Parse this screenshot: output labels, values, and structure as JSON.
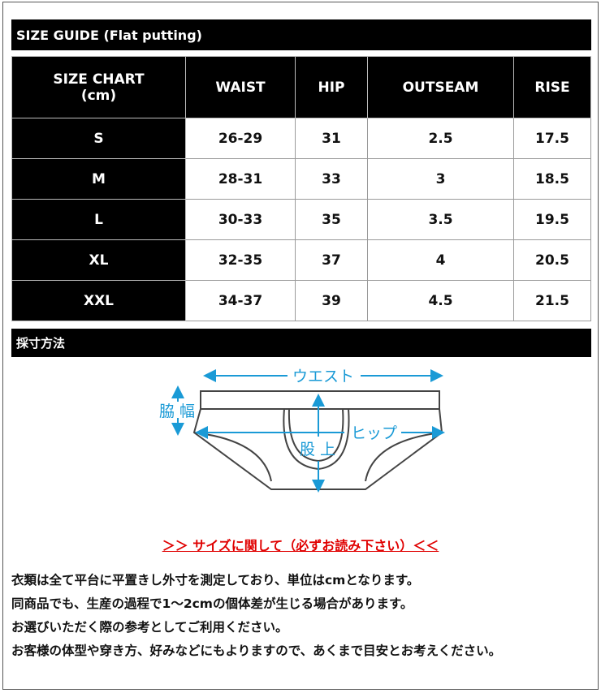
{
  "title_bar": "SIZE GUIDE (Flat putting)",
  "table": {
    "headers": [
      "SIZE CHART\n(cm)",
      "WAIST",
      "HIP",
      "OUTSEAM",
      "RISE"
    ],
    "rows": [
      [
        "S",
        "26-29",
        "31",
        "2.5",
        "17.5"
      ],
      [
        "M",
        "28-31",
        "33",
        "3",
        "18.5"
      ],
      [
        "L",
        "30-33",
        "35",
        "3.5",
        "19.5"
      ],
      [
        "XL",
        "32-35",
        "37",
        "4",
        "20.5"
      ],
      [
        "XXL",
        "34-37",
        "39",
        "4.5",
        "21.5"
      ]
    ]
  },
  "measure_bar": "採寸方法",
  "diagram": {
    "waist": "ウエスト",
    "side": "脇 幅",
    "hip": "ヒップ",
    "rise": "股 上",
    "arrow_color": "#1a9ad6"
  },
  "notice": "＞＞ サイズに関して（必ずお読み下さい）＜＜",
  "notice_color": "#e00000",
  "lines": [
    "衣類は全て平台に平置きし外寸を測定しており、単位はcmとなります。",
    "同商品でも、生産の過程で1～2cmの個体差が生じる場合があります。",
    "お選びいただく際の参考としてご利用ください。",
    "お客様の体型や穿き方、好みなどにもよりますので、あくまで目安とお考えください。"
  ]
}
